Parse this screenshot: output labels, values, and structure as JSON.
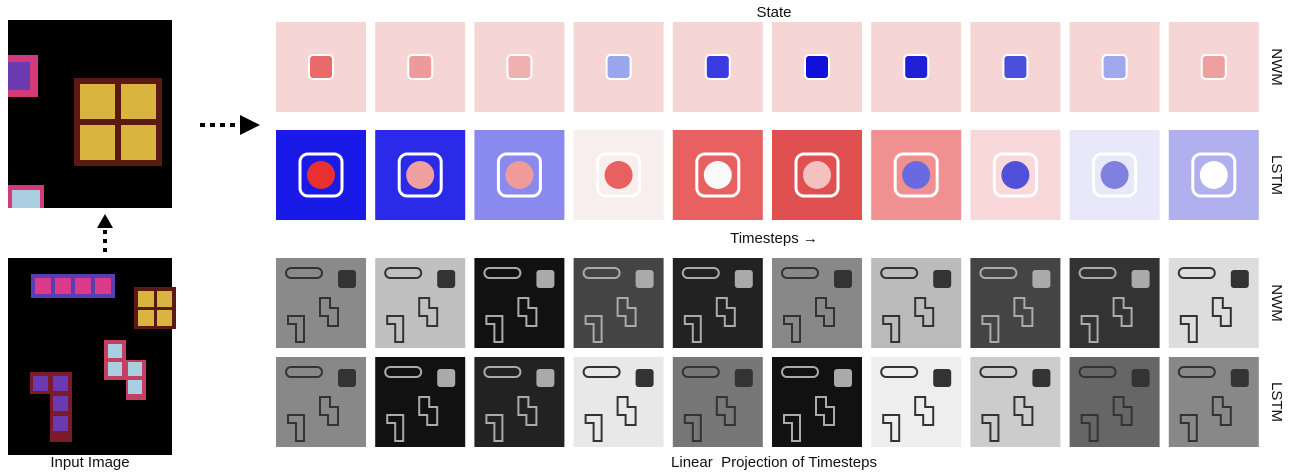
{
  "state_label": "State",
  "timesteps_label": "Timesteps →",
  "projection_label": "Linear  Projection of Timesteps",
  "input_label": "Input Image",
  "row_labels": [
    "NWM",
    "LSTM",
    "NWM",
    "LSTM"
  ]
}
